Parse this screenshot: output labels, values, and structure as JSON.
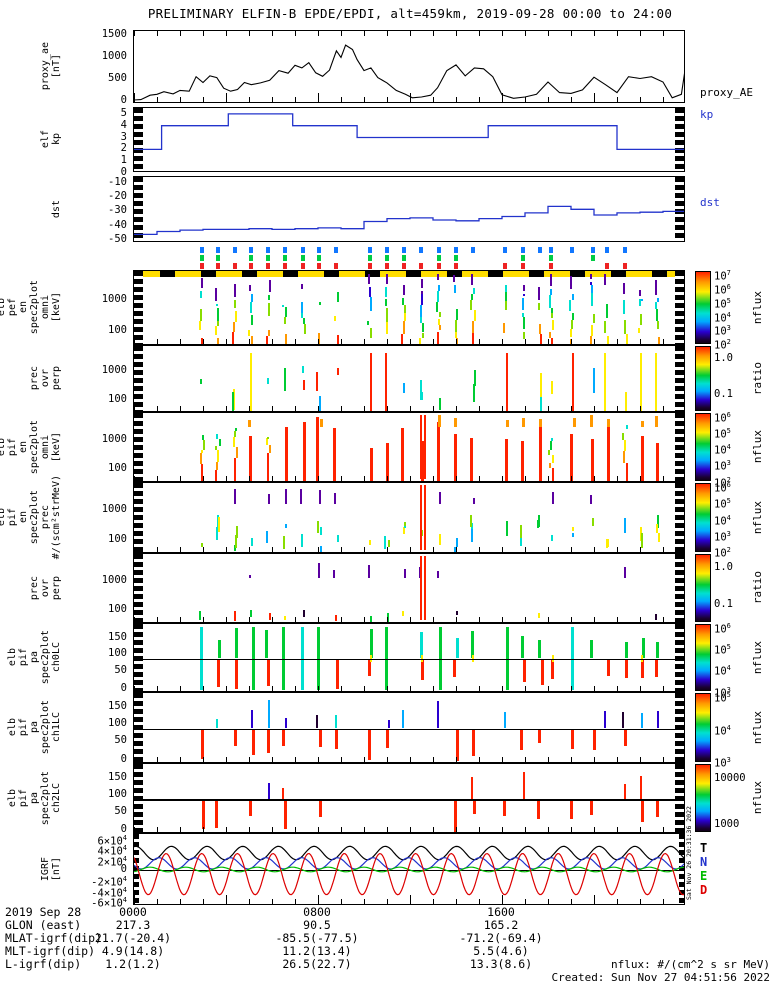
{
  "title": "PRELIMINARY ELFIN-B EPDE/EPDI, alt=459km, 2019-09-28 00:00 to 24:00",
  "colors": {
    "axis": "#000000",
    "line_blue": "#2233cc",
    "marker_blue": "#1177ff",
    "marker_green": "#00cc44",
    "marker_red": "#ee2222",
    "bar_yellow": "#ffdd00",
    "bar_black": "#000000",
    "rainbow": [
      "#ff2200",
      "#ff9900",
      "#ffee00",
      "#88dd00",
      "#00cc33",
      "#00e0d0",
      "#00aaff",
      "#2a00d0",
      "#5a00a0"
    ]
  },
  "chart_data": [
    {
      "type": "line",
      "id": "proxy_ae",
      "ylabel_lines": [
        "proxy_ae",
        "[nT]"
      ],
      "yticks": [
        {
          "t": "1500",
          "v": 1500
        },
        {
          "t": "1000",
          "v": 1000
        },
        {
          "t": "500",
          "v": 500
        },
        {
          "t": "0",
          "v": 0
        }
      ],
      "ylim": [
        -60,
        1600
      ],
      "xlim_hours": [
        0,
        24
      ],
      "right_label": {
        "text": "proxy_AE",
        "color": "#000000"
      },
      "x": [
        0,
        0.3,
        0.7,
        1.0,
        1.3,
        1.7,
        2.0,
        2.4,
        2.7,
        3.0,
        3.3,
        3.6,
        3.9,
        4.2,
        4.5,
        4.8,
        5.1,
        5.5,
        5.9,
        6.3,
        6.7,
        7.0,
        7.3,
        7.6,
        7.9,
        8.2,
        8.5,
        8.8,
        9.0,
        9.2,
        9.5,
        9.7,
        10.0,
        10.3,
        10.6,
        11.0,
        11.4,
        11.8,
        12.1,
        12.5,
        12.9,
        13.2,
        13.6,
        14.0,
        14.4,
        14.8,
        15.2,
        15.6,
        16.0,
        16.5,
        17.0,
        17.5,
        18.0,
        18.5,
        19.0,
        19.5,
        20.0,
        20.5,
        21.0,
        21.5,
        22.0,
        22.5,
        23.0,
        23.4,
        23.8,
        24.0
      ],
      "y": [
        30,
        40,
        140,
        160,
        220,
        170,
        250,
        230,
        560,
        430,
        580,
        540,
        300,
        230,
        270,
        430,
        380,
        420,
        480,
        700,
        640,
        820,
        760,
        880,
        650,
        570,
        710,
        1150,
        1000,
        1280,
        1180,
        950,
        700,
        760,
        540,
        420,
        250,
        160,
        80,
        100,
        140,
        310,
        700,
        830,
        580,
        760,
        740,
        560,
        150,
        70,
        100,
        160,
        440,
        200,
        180,
        260,
        550,
        380,
        200,
        560,
        520,
        560,
        440,
        80,
        160,
        860
      ]
    },
    {
      "type": "step",
      "id": "kp",
      "ylabel_lines": [
        "elf",
        "kp"
      ],
      "yticks": [
        {
          "t": "5",
          "v": 5
        },
        {
          "t": "4",
          "v": 4
        },
        {
          "t": "3",
          "v": 3
        },
        {
          "t": "2",
          "v": 2
        },
        {
          "t": "1",
          "v": 1
        },
        {
          "t": "0",
          "v": 0
        }
      ],
      "ylim": [
        0,
        5.5
      ],
      "right_label": {
        "text": "kp",
        "color": "#2233cc"
      },
      "steps": [
        [
          0,
          1.2,
          2
        ],
        [
          1.2,
          4.1,
          4
        ],
        [
          4.1,
          6.9,
          5
        ],
        [
          6.9,
          9.7,
          4
        ],
        [
          9.7,
          15.4,
          3
        ],
        [
          15.4,
          21.0,
          4
        ],
        [
          21.0,
          24,
          2
        ]
      ]
    },
    {
      "type": "step-series",
      "id": "dst",
      "ylabel_lines": [
        "dst"
      ],
      "yticks": [
        {
          "t": "-10",
          "v": -10
        },
        {
          "t": "-20",
          "v": -20
        },
        {
          "t": "-30",
          "v": -30
        },
        {
          "t": "-40",
          "v": -40
        },
        {
          "t": "-50",
          "v": -50
        }
      ],
      "ylim": [
        -52,
        -6
      ],
      "right_label": {
        "text": "dst",
        "color": "#2233cc"
      },
      "hourly": [
        -46,
        -44,
        -43,
        -42.5,
        -42.5,
        -42,
        -42.5,
        -42,
        -41.5,
        -42,
        -37,
        -35,
        -34.5,
        -36,
        -36.5,
        -35,
        -33.5,
        -31,
        -26.5,
        -28.5,
        -32.5,
        -31,
        -30.5,
        -30
      ]
    },
    {
      "type": "spectrogram-block",
      "id": "spectro",
      "stripe_times": [
        2.9,
        3.6,
        4.35,
        5.05,
        5.8,
        6.5,
        7.3,
        8.0,
        8.75,
        10.2,
        10.95,
        11.7,
        12.45,
        13.2,
        13.95,
        14.7,
        16.1,
        16.85,
        17.6,
        18.1,
        19.0,
        19.9,
        20.5,
        21.3,
        22.0,
        22.7
      ],
      "marker_rows": {
        "blue": [
          2.9,
          3.6,
          4.35,
          5.05,
          5.8,
          6.5,
          7.3,
          8.0,
          8.75,
          10.2,
          10.95,
          11.7,
          12.45,
          13.2,
          13.95,
          14.7,
          16.1,
          16.85,
          17.6,
          18.1,
          19.0,
          19.9,
          20.5,
          21.3
        ],
        "green": [
          2.9,
          3.6,
          5.05,
          5.8,
          6.5,
          7.3,
          8.0,
          10.2,
          10.95,
          11.7,
          13.2,
          13.95,
          16.85,
          18.1,
          19.9
        ],
        "red": [
          2.9,
          3.6,
          4.35,
          5.05,
          5.8,
          6.5,
          7.3,
          8.0,
          8.75,
          10.2,
          10.95,
          11.7,
          12.45,
          13.2,
          13.95,
          16.1,
          16.85,
          18.1,
          20.5,
          21.3
        ]
      },
      "full_red_times": [
        12.45
      ],
      "panels": [
        {
          "id": "pef-en-omni",
          "style": "flux",
          "seed": 11,
          "ylabel_lines": [
            "elb",
            "pef",
            "en",
            "spec2plot",
            "omni",
            "[keV]"
          ],
          "yticks": [
            {
              "t": "1000",
              "f": 0.38
            },
            {
              "t": "100",
              "f": 0.8
            }
          ],
          "colorbar": {
            "label": "nflux",
            "ticks": [
              {
                "t": "10",
                "s": "7"
              },
              {
                "t": "10",
                "s": "6"
              },
              {
                "t": "10",
                "s": "5"
              },
              {
                "t": "10",
                "s": "4"
              },
              {
                "t": "10",
                "s": "3"
              },
              {
                "t": "10",
                "s": "2"
              }
            ]
          }
        },
        {
          "id": "prec-ovr-perp-1",
          "style": "ratio",
          "seed": 22,
          "ylabel_lines": [
            "prec",
            "ovr",
            "perp"
          ],
          "yticks": [
            {
              "t": "1000",
              "f": 0.38
            },
            {
              "t": "100",
              "f": 0.8
            }
          ],
          "colorbar": {
            "label": "ratio",
            "ticks": [
              {
                "t": "1.0",
                "f": 0.18
              },
              {
                "t": "0.1",
                "f": 0.72
              }
            ]
          }
        },
        {
          "id": "pif-en-omni",
          "style": "redflux",
          "seed": 33,
          "ylabel_lines": [
            "elb",
            "pif",
            "en",
            "spec2plot",
            "omni",
            "[keV]"
          ],
          "yticks": [
            {
              "t": "1000",
              "f": 0.38
            },
            {
              "t": "100",
              "f": 0.8
            }
          ],
          "colorbar": {
            "label": "nflux",
            "ticks": [
              {
                "t": "10",
                "s": "6"
              },
              {
                "t": "10",
                "s": "5"
              },
              {
                "t": "10",
                "s": "4"
              },
              {
                "t": "10",
                "s": "3"
              },
              {
                "t": "10",
                "s": "2"
              }
            ]
          }
        },
        {
          "id": "pif-en-prec",
          "style": "prec",
          "seed": 44,
          "ylabel_lines": [
            "elb",
            "pif",
            "en",
            "spec2plot",
            "prec",
            "#/(scm²strMeV)"
          ],
          "yticks": [
            {
              "t": "1000",
              "f": 0.38
            },
            {
              "t": "100",
              "f": 0.8
            }
          ],
          "colorbar": {
            "label": "nflux",
            "ticks": [
              {
                "t": "10",
                "s": "6"
              },
              {
                "t": "10",
                "s": "5"
              },
              {
                "t": "10",
                "s": "4"
              },
              {
                "t": "10",
                "s": "3"
              },
              {
                "t": "10",
                "s": "2"
              }
            ]
          }
        },
        {
          "id": "prec-ovr-perp-2",
          "style": "ratio2",
          "seed": 55,
          "ylabel_lines": [
            "prec",
            "ovr",
            "perp"
          ],
          "yticks": [
            {
              "t": "1000",
              "f": 0.38
            },
            {
              "t": "100",
              "f": 0.8
            }
          ],
          "colorbar": {
            "label": "ratio",
            "ticks": [
              {
                "t": "1.0",
                "f": 0.18
              },
              {
                "t": "0.1",
                "f": 0.72
              }
            ]
          }
        },
        {
          "id": "pa-ch0LC",
          "style": "pa0",
          "seed": 66,
          "midline": 0.5,
          "ylabel_lines": [
            "elb",
            "pif",
            "pa",
            "spec2plot",
            "ch0LC"
          ],
          "yticks": [
            {
              "t": "150",
              "f": 0.2
            },
            {
              "t": "100",
              "f": 0.44
            },
            {
              "t": "50",
              "f": 0.68
            },
            {
              "t": "0",
              "f": 0.94
            }
          ],
          "colorbar": {
            "label": "nflux",
            "ticks": [
              {
                "t": "10",
                "s": "6"
              },
              {
                "t": "10",
                "s": "5"
              },
              {
                "t": "10",
                "s": "4"
              },
              {
                "t": "10",
                "s": "3"
              }
            ]
          }
        },
        {
          "id": "pa-ch1LC",
          "style": "pa1",
          "seed": 77,
          "midline": 0.5,
          "ylabel_lines": [
            "elb",
            "pif",
            "pa",
            "spec2plot",
            "ch1LC"
          ],
          "yticks": [
            {
              "t": "150",
              "f": 0.2
            },
            {
              "t": "100",
              "f": 0.44
            },
            {
              "t": "50",
              "f": 0.68
            },
            {
              "t": "0",
              "f": 0.94
            }
          ],
          "colorbar": {
            "label": "nflux",
            "ticks": [
              {
                "t": "10",
                "s": "5"
              },
              {
                "t": "10",
                "s": "4"
              },
              {
                "t": "10",
                "s": "3"
              }
            ]
          }
        },
        {
          "id": "pa-ch2LC",
          "style": "pa2",
          "seed": 88,
          "midline": 0.5,
          "ylabel_lines": [
            "elb",
            "pif",
            "pa",
            "spec2plot",
            "ch2LC"
          ],
          "yticks": [
            {
              "t": "150",
              "f": 0.2
            },
            {
              "t": "100",
              "f": 0.44
            },
            {
              "t": "50",
              "f": 0.68
            },
            {
              "t": "0",
              "f": 0.94
            }
          ],
          "colorbar": {
            "label": "nflux",
            "ticks": [
              {
                "t": "10000",
                "f": 0.2
              },
              {
                "t": "1000",
                "f": 0.85
              }
            ]
          }
        }
      ]
    },
    {
      "type": "multi-line",
      "id": "igrf",
      "ylabel_lines": [
        "IGRF",
        "[nT]"
      ],
      "yticks": [
        {
          "t": "6×10",
          "s": "4",
          "v": 60000
        },
        {
          "t": "4×10",
          "s": "4",
          "v": 40000
        },
        {
          "t": "2×10",
          "s": "4",
          "v": 20000
        },
        {
          "t": "0",
          "v": 0
        },
        {
          "t": "-2×10",
          "s": "4",
          "v": -20000
        },
        {
          "t": "-4×10",
          "s": "4",
          "v": -40000
        },
        {
          "t": "-6×10",
          "s": "4",
          "v": -60000
        }
      ],
      "ylim": [
        -70000,
        70000
      ],
      "series": [
        {
          "name": "T",
          "color": "#000000",
          "base": 33000,
          "amp": 13000,
          "period": 1.55,
          "phase": 0.2
        },
        {
          "name": "N",
          "color": "#2233cc",
          "base": 13000,
          "amp": 11000,
          "period": 1.55,
          "phase": 0.55
        },
        {
          "name": "E",
          "color": "#00bb00",
          "base": 1000,
          "amp": 4500,
          "period": 1.55,
          "phase": 0.8
        },
        {
          "name": "D",
          "color": "#dd0000",
          "base": -8000,
          "amp": 40000,
          "period": 1.55,
          "phase": 0.35
        }
      ],
      "legend": [
        {
          "t": "T",
          "c": "#000000"
        },
        {
          "t": "N",
          "c": "#2233cc"
        },
        {
          "t": "E",
          "c": "#00bb00"
        },
        {
          "t": "D",
          "c": "#dd0000"
        }
      ]
    }
  ],
  "footer": {
    "rows": [
      {
        "label": "2019 Sep 28",
        "c1": "0000",
        "c2": "0800",
        "c3": "1600"
      },
      {
        "label": "GLON (east)",
        "c1": "217.3",
        "c2": "90.5",
        "c3": "165.2"
      },
      {
        "label": "MLAT-igrf(dip)",
        "c1": "21.7(-20.4)",
        "c2": "-85.5(-77.5)",
        "c3": "-71.2(-69.4)"
      },
      {
        "label": "MLT-igrf(dip)",
        "c1": "4.9(14.8)",
        "c2": "11.2(13.4)",
        "c3": "5.5(4.6)"
      },
      {
        "label": "L-igrf(dip)",
        "c1": "1.2(1.2)",
        "c2": "26.5(22.7)",
        "c3": "13.3(8.6)"
      }
    ],
    "nflux_note": "nflux: #/(cm^2 s sr MeV)",
    "created_note": "Created: Sun Nov 27 04:51:56 2022"
  },
  "side_note": "Sat Nov 26 20:31:36 2022"
}
